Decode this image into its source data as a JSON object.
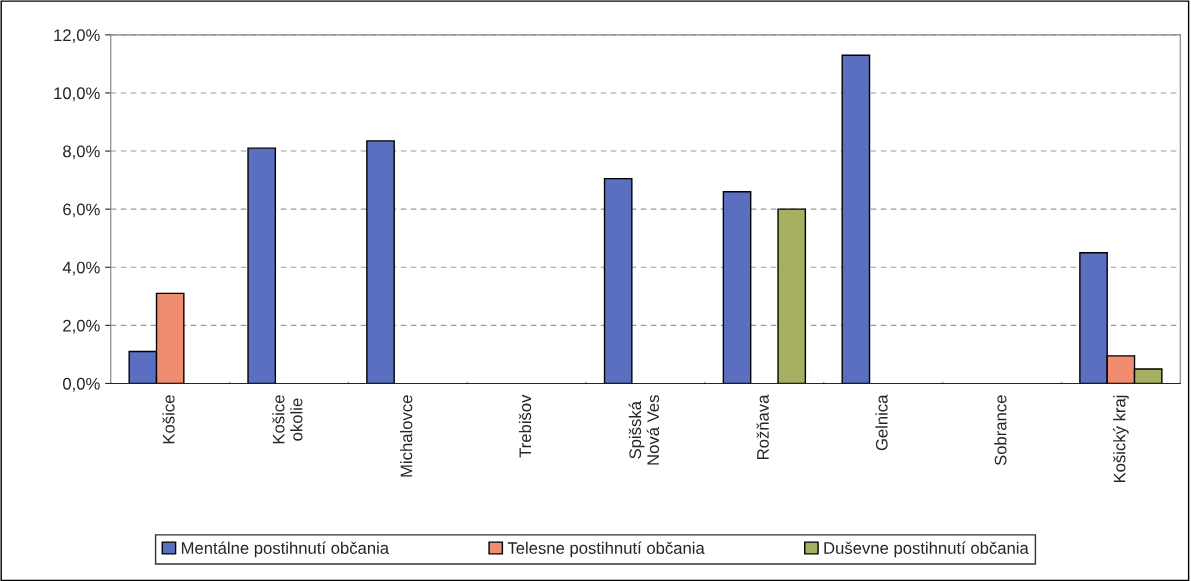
{
  "chart_data": {
    "type": "bar",
    "categories": [
      "Košice",
      "Košice\nokolie",
      "Michalovce",
      "Trebišov",
      "Spišská\nNová Ves",
      "Rožňava",
      "Gelnica",
      "Sobrance",
      "Košický kraj"
    ],
    "series": [
      {
        "name": "Mentálne postihnutí občania",
        "color": "#5a6fbf",
        "values": [
          1.1,
          8.1,
          8.35,
          0,
          7.05,
          6.6,
          11.3,
          0,
          4.5
        ]
      },
      {
        "name": "Telesne postihnutí občania",
        "color": "#f08c70",
        "values": [
          3.1,
          0,
          0,
          0,
          0,
          0,
          0,
          0,
          0.95
        ]
      },
      {
        "name": "Duševne postihnutí občania",
        "color": "#a7b060",
        "values": [
          0,
          0,
          0,
          0,
          0,
          6.0,
          0,
          0,
          0.5
        ]
      }
    ],
    "ylim": [
      0,
      12
    ],
    "yticks": [
      {
        "value": 0,
        "label": "0,0%"
      },
      {
        "value": 2,
        "label": "2,0%"
      },
      {
        "value": 4,
        "label": "4,0%"
      },
      {
        "value": 6,
        "label": "6,0%"
      },
      {
        "value": 8,
        "label": "8,0%"
      },
      {
        "value": 10,
        "label": "10,0%"
      },
      {
        "value": 12,
        "label": "12,0%"
      }
    ],
    "grid": "y",
    "legend": "bottom"
  }
}
